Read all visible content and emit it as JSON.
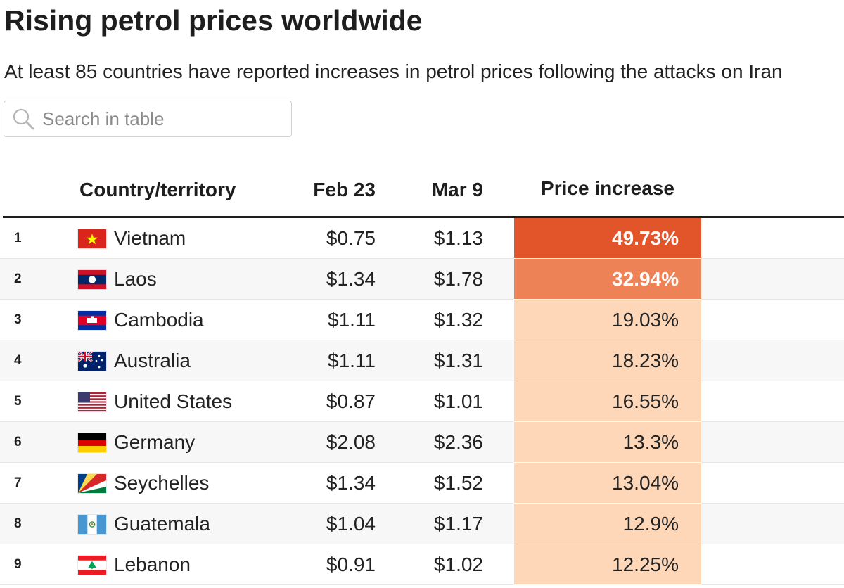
{
  "title": "Rising petrol prices worldwide",
  "subtitle": "At least 85 countries have reported increases in petrol prices following the attacks on Iran",
  "search": {
    "placeholder": "Search in table"
  },
  "columns": {
    "country": "Country/territory",
    "feb": "Feb 23",
    "mar": "Mar 9",
    "increase": "Price increase"
  },
  "colors": {
    "hot1": "#e2542a",
    "hot2": "#ee8257",
    "base": "#fdd7b8"
  },
  "rows": [
    {
      "rank": "1",
      "flag": "vietnam-flag-icon",
      "country": "Vietnam",
      "feb": "$0.75",
      "mar": "$1.13",
      "increase": "49.73%"
    },
    {
      "rank": "2",
      "flag": "laos-flag-icon",
      "country": "Laos",
      "feb": "$1.34",
      "mar": "$1.78",
      "increase": "32.94%"
    },
    {
      "rank": "3",
      "flag": "cambodia-flag-icon",
      "country": "Cambodia",
      "feb": "$1.11",
      "mar": "$1.32",
      "increase": "19.03%"
    },
    {
      "rank": "4",
      "flag": "australia-flag-icon",
      "country": "Australia",
      "feb": "$1.11",
      "mar": "$1.31",
      "increase": "18.23%"
    },
    {
      "rank": "5",
      "flag": "united-states-flag-icon",
      "country": "United States",
      "feb": "$0.87",
      "mar": "$1.01",
      "increase": "16.55%"
    },
    {
      "rank": "6",
      "flag": "germany-flag-icon",
      "country": "Germany",
      "feb": "$2.08",
      "mar": "$2.36",
      "increase": "13.3%"
    },
    {
      "rank": "7",
      "flag": "seychelles-flag-icon",
      "country": "Seychelles",
      "feb": "$1.34",
      "mar": "$1.52",
      "increase": "13.04%"
    },
    {
      "rank": "8",
      "flag": "guatemala-flag-icon",
      "country": "Guatemala",
      "feb": "$1.04",
      "mar": "$1.17",
      "increase": "12.9%"
    },
    {
      "rank": "9",
      "flag": "lebanon-flag-icon",
      "country": "Lebanon",
      "feb": "$0.91",
      "mar": "$1.02",
      "increase": "12.25%"
    }
  ]
}
